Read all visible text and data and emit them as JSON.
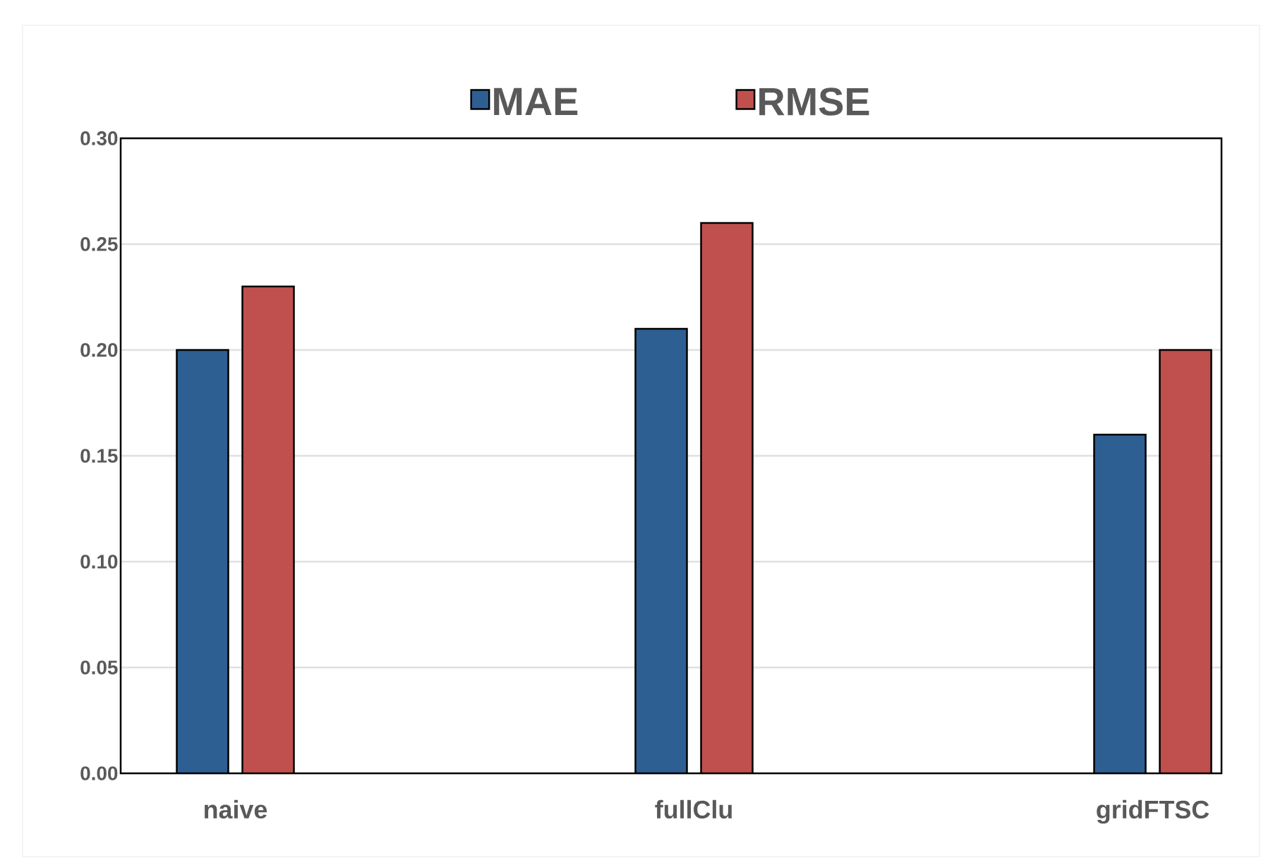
{
  "chart_data": {
    "type": "bar",
    "categories": [
      "naive",
      "fullClu",
      "gridFTSC"
    ],
    "series": [
      {
        "name": "MAE",
        "color": "#2e5f93",
        "values": [
          0.2,
          0.21,
          0.16
        ]
      },
      {
        "name": "RMSE",
        "color": "#c0504d",
        "values": [
          0.23,
          0.26,
          0.2
        ]
      }
    ],
    "ylim": [
      0,
      0.3
    ],
    "yticks": [
      {
        "value": 0,
        "label": "0.00"
      },
      {
        "value": 0.05,
        "label": "0.05"
      },
      {
        "value": 0.1,
        "label": "0.10"
      },
      {
        "value": 0.15,
        "label": "0.15"
      },
      {
        "value": 0.2,
        "label": "0.20"
      },
      {
        "value": 0.25,
        "label": "0.25"
      },
      {
        "value": 0.3,
        "label": "0.30"
      }
    ],
    "grid": "y",
    "legend": "top"
  }
}
